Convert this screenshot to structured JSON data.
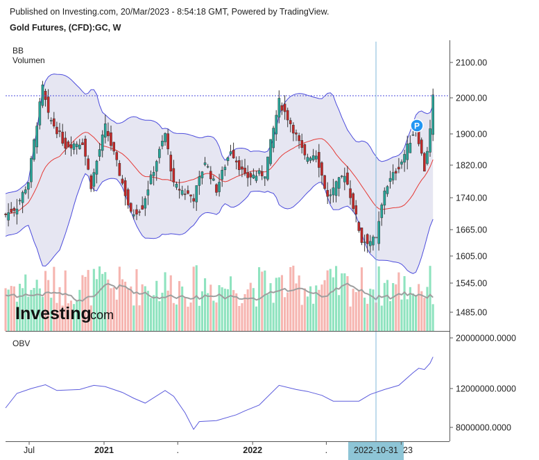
{
  "header": {
    "published": "Published on Investing.com, 20/Mar/2023 - 8:54:18 GMT, Powered by TradingView.",
    "symbol": "Gold Futures, (CFD):GC, W"
  },
  "labels": {
    "bb": "BB",
    "volume": "Volumen",
    "obv": "OBV",
    "marker": "P"
  },
  "watermark": {
    "brand": "Investing",
    "suffix": ".com"
  },
  "colors": {
    "up": "#26a69a",
    "down": "#c62828",
    "band_fill": "#e6e6f2",
    "band_line": "#4b4bdc",
    "mid": "#e53935",
    "vol_up": "#8fe3bf",
    "vol_down": "#f6b5b0",
    "obv": "#5a5adc",
    "crosshair": "#7fb7d9",
    "highlight": "#8ec5d6"
  },
  "chart_data": [
    {
      "type": "candlestick",
      "title": "Gold Futures, (CFD):GC, W",
      "indicators": [
        "BB",
        "Volumen"
      ],
      "y_ticks": [
        "2100.00",
        "2000.00",
        "1900.00",
        "1820.00",
        "1740.00",
        "1665.00",
        "1605.00",
        "1545.00",
        "1485.00"
      ],
      "y_tick_values": [
        2100,
        2000,
        1900,
        1820,
        1740,
        1665,
        1605,
        1545,
        1485
      ],
      "x_ticks": [
        "Jul",
        "2021",
        ".",
        "2022",
        ".",
        "2022-10-31",
        "23"
      ],
      "x_tick_dates": [
        "2020-07-01",
        "2021-01-01",
        "2021-07-01",
        "2022-01-01",
        "2022-07-01",
        "2022-10-31",
        "2023-01-01"
      ],
      "x_range": [
        "2020-05-04",
        "2023-03-20"
      ],
      "crosshair_date": "2022-10-31",
      "last_close": 2000,
      "anchors": [
        [
          "2020-05-04",
          1700
        ],
        [
          "2020-06-01",
          1720
        ],
        [
          "2020-06-29",
          1780
        ],
        [
          "2020-08-03",
          2030
        ],
        [
          "2020-08-17",
          1950
        ],
        [
          "2020-09-28",
          1870
        ],
        [
          "2020-11-09",
          1880
        ],
        [
          "2020-11-30",
          1770
        ],
        [
          "2021-01-04",
          1920
        ],
        [
          "2021-02-08",
          1800
        ],
        [
          "2021-03-08",
          1700
        ],
        [
          "2021-04-05",
          1720
        ],
        [
          "2021-05-31",
          1900
        ],
        [
          "2021-06-21",
          1770
        ],
        [
          "2021-08-09",
          1740
        ],
        [
          "2021-09-06",
          1830
        ],
        [
          "2021-10-04",
          1760
        ],
        [
          "2021-11-08",
          1860
        ],
        [
          "2021-12-13",
          1790
        ],
        [
          "2022-01-31",
          1800
        ],
        [
          "2022-03-07",
          1990
        ],
        [
          "2022-04-04",
          1930
        ],
        [
          "2022-05-09",
          1840
        ],
        [
          "2022-06-06",
          1850
        ],
        [
          "2022-07-04",
          1740
        ],
        [
          "2022-08-15",
          1800
        ],
        [
          "2022-09-26",
          1640
        ],
        [
          "2022-10-31",
          1640
        ],
        [
          "2022-11-21",
          1760
        ],
        [
          "2023-01-02",
          1830
        ],
        [
          "2023-02-06",
          1920
        ],
        [
          "2023-02-27",
          1810
        ],
        [
          "2023-03-13",
          1910
        ],
        [
          "2023-03-20",
          2000
        ]
      ]
    },
    {
      "type": "line",
      "title": "OBV",
      "y_ticks": [
        "20000000.0000",
        "12000000.0000",
        "8000000.0000"
      ],
      "y_tick_values": [
        20000000,
        12000000,
        8000000
      ],
      "points": [
        [
          "2020-05-04",
          10000000
        ],
        [
          "2020-06-01",
          11500000
        ],
        [
          "2020-07-06",
          12000000
        ],
        [
          "2020-08-10",
          12600000
        ],
        [
          "2020-09-07",
          11800000
        ],
        [
          "2020-11-02",
          11900000
        ],
        [
          "2020-12-07",
          12500000
        ],
        [
          "2021-01-04",
          12300000
        ],
        [
          "2021-02-15",
          11600000
        ],
        [
          "2021-03-15",
          11000000
        ],
        [
          "2021-04-12",
          10500000
        ],
        [
          "2021-05-31",
          11800000
        ],
        [
          "2021-06-21",
          11200000
        ],
        [
          "2021-07-19",
          9500000
        ],
        [
          "2021-08-09",
          7800000
        ],
        [
          "2021-08-23",
          8600000
        ],
        [
          "2021-10-04",
          8700000
        ],
        [
          "2021-11-22",
          9300000
        ],
        [
          "2021-12-13",
          9700000
        ],
        [
          "2022-01-17",
          10300000
        ],
        [
          "2022-03-07",
          12500000
        ],
        [
          "2022-04-18",
          11900000
        ],
        [
          "2022-05-16",
          11700000
        ],
        [
          "2022-06-20",
          11300000
        ],
        [
          "2022-07-18",
          10700000
        ],
        [
          "2022-09-19",
          10700000
        ],
        [
          "2022-10-17",
          11400000
        ],
        [
          "2022-11-21",
          11900000
        ],
        [
          "2022-12-26",
          12500000
        ],
        [
          "2023-01-30",
          14500000
        ],
        [
          "2023-02-13",
          15200000
        ],
        [
          "2023-02-27",
          15000000
        ],
        [
          "2023-03-13",
          16000000
        ],
        [
          "2023-03-20",
          17000000
        ]
      ]
    }
  ]
}
